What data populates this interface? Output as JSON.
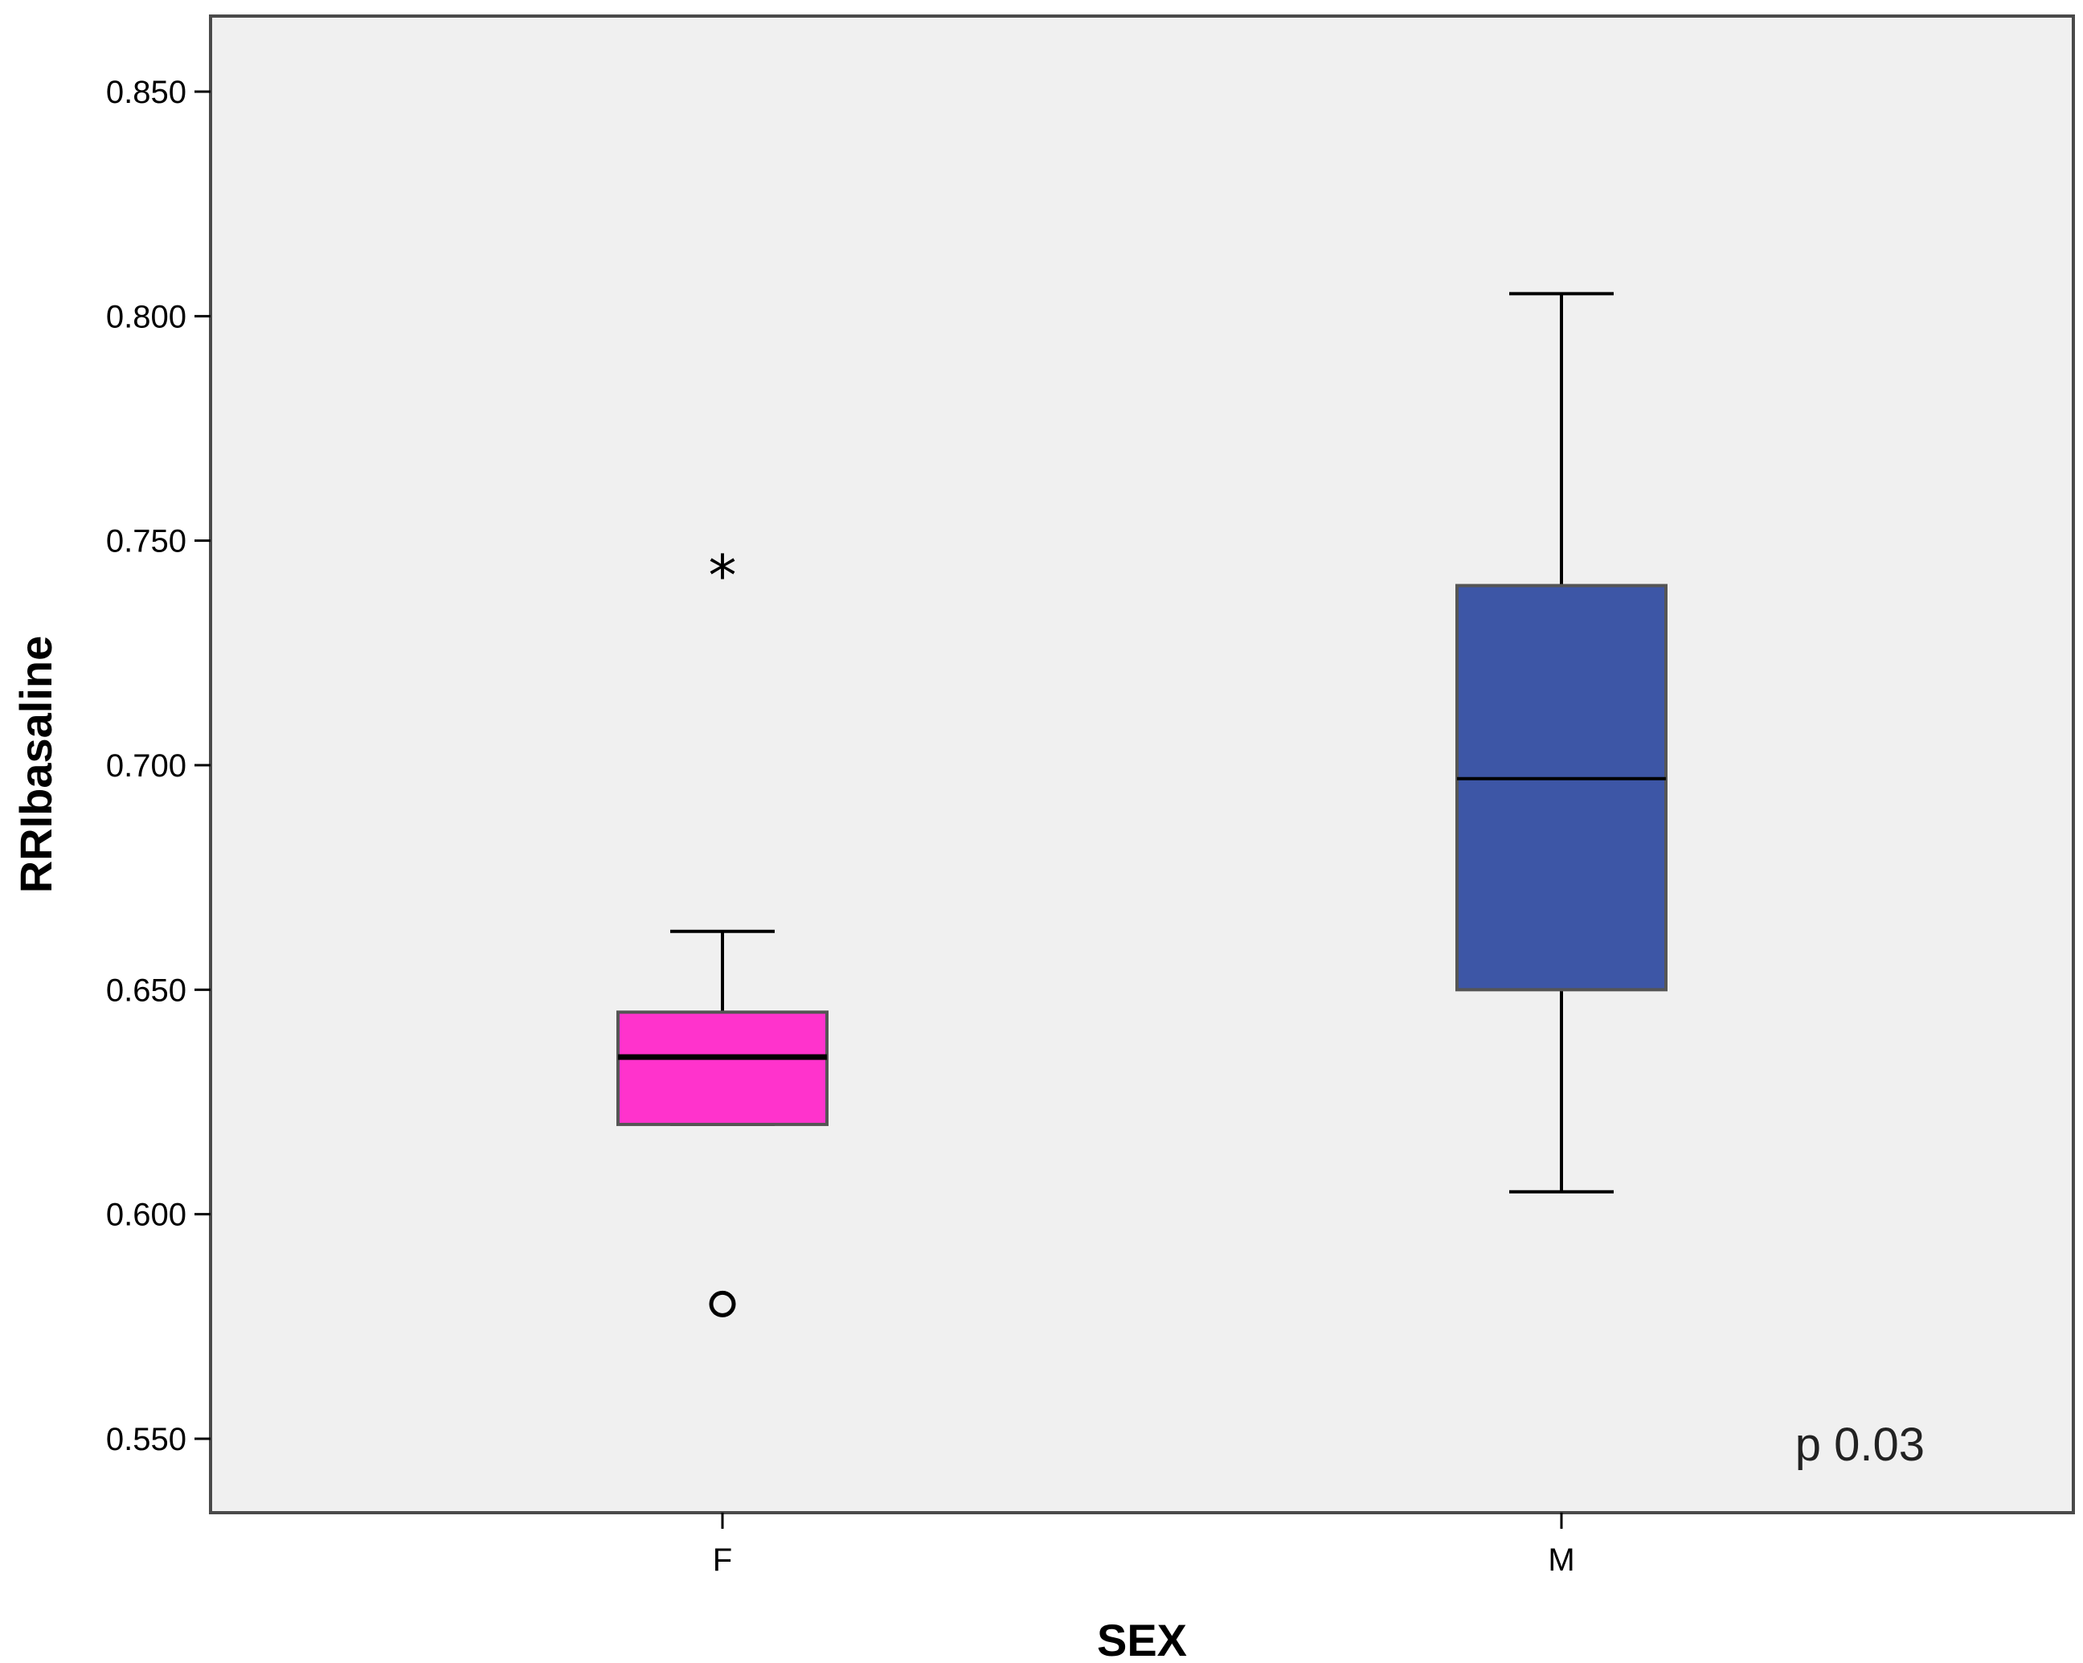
{
  "chart_data": {
    "type": "boxplot",
    "xlabel": "SEX",
    "ylabel": "RRIbasaline",
    "ylim": [
      0.533,
      0.867
    ],
    "yticks": [
      0.55,
      0.6,
      0.65,
      0.7,
      0.75,
      0.8,
      0.85
    ],
    "ytick_labels": [
      "0.550",
      "0.600",
      "0.650",
      "0.700",
      "0.750",
      "0.800",
      "0.850"
    ],
    "categories": [
      "F",
      "M"
    ],
    "boxes": [
      {
        "category": "F",
        "color": "#FF33CC",
        "whisker_low": 0.62,
        "q1": 0.62,
        "median": 0.635,
        "q3": 0.645,
        "whisker_high": 0.663,
        "outliers": [
          {
            "value": 0.58,
            "marker": "circle"
          },
          {
            "value": 0.745,
            "marker": "star"
          }
        ]
      },
      {
        "category": "M",
        "color": "#3D56A6",
        "whisker_low": 0.605,
        "q1": 0.65,
        "median": 0.697,
        "q3": 0.74,
        "whisker_high": 0.805,
        "outliers": []
      }
    ],
    "annotation": "p 0.03",
    "background_color": "#F0F0F0",
    "grid": false
  }
}
